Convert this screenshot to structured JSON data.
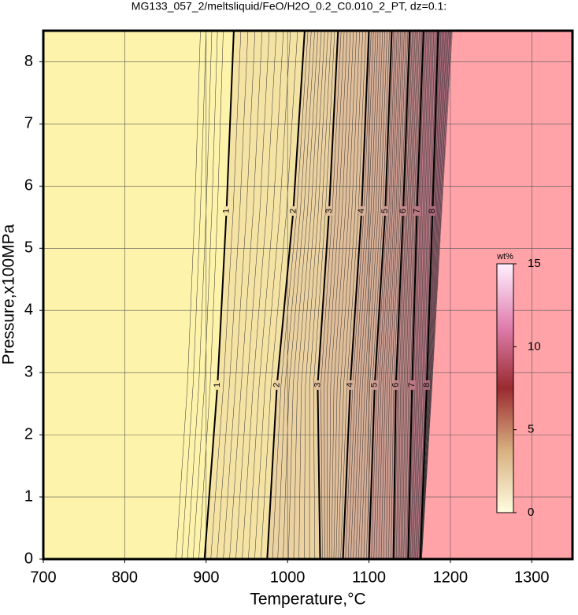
{
  "chart_data": {
    "type": "contour",
    "title": "MG133_057_2/meltsliquid/FeO/H2O_0.2_C0.010_2_PT, dz=0.1:",
    "xlabel": "Temperature,°C",
    "ylabel": "Pressure,x100MPa",
    "xlim": [
      700,
      1350
    ],
    "ylim": [
      0,
      8.5
    ],
    "xticks": [
      700,
      800,
      900,
      1000,
      1100,
      1200,
      1300
    ],
    "yticks": [
      0,
      1,
      2,
      3,
      4,
      5,
      6,
      7,
      8
    ],
    "grid": true,
    "background_color": "#fdf3aa",
    "pressures": [
      0,
      2.8,
      5.6,
      8.5
    ],
    "series": [
      {
        "name": "1",
        "color": "#f5e3a4",
        "values": [
          898,
          914,
          925,
          934
        ]
      },
      {
        "name": "2",
        "color": "#ebd2a0",
        "values": [
          975,
          987,
          1007,
          1021
        ]
      },
      {
        "name": "3",
        "color": "#e1c09b",
        "values": [
          1040,
          1037,
          1051,
          1062
        ]
      },
      {
        "name": "4",
        "color": "#d7ae96",
        "values": [
          1068,
          1077,
          1091,
          1100
        ]
      },
      {
        "name": "5",
        "color": "#cd9c90",
        "values": [
          1100,
          1107,
          1120,
          1128
        ]
      },
      {
        "name": "6",
        "color": "#c38a8a",
        "values": [
          1130,
          1133,
          1142,
          1150
        ]
      },
      {
        "name": "7",
        "color": "#b97884",
        "values": [
          1148,
          1153,
          1159,
          1167
        ]
      },
      {
        "name": "8",
        "color": "#ad6a7c",
        "values": [
          1163,
          1171,
          1178,
          1185
        ]
      }
    ],
    "saturation_boundary": {
      "color": "#ffa3a8",
      "values": [
        1165,
        1178,
        1190,
        1203
      ]
    },
    "colorbar": {
      "label": "wt%",
      "lim": [
        0,
        15
      ],
      "ticks": [
        0,
        5,
        10,
        15
      ],
      "colors": [
        "#fffde0",
        "#d8b080",
        "#9a2a30",
        "#e080b0",
        "#fff0ff"
      ]
    }
  }
}
